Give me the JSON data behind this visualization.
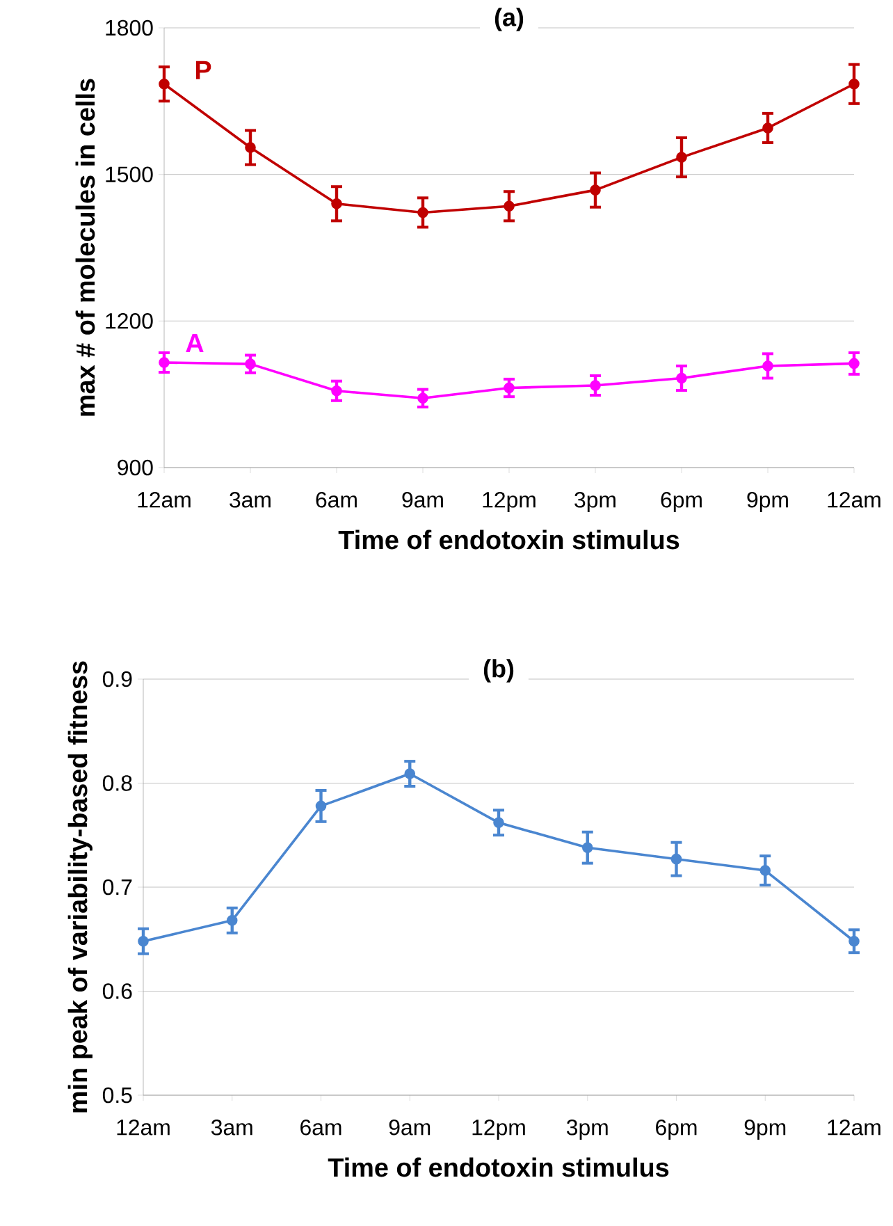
{
  "chart_data": [
    {
      "type": "line",
      "title": "(a)",
      "xlabel": "Time of endotoxin stimulus",
      "ylabel": "max # of molecules in cells",
      "categories": [
        "12am",
        "3am",
        "6am",
        "9am",
        "12pm",
        "3pm",
        "6pm",
        "9pm",
        "12am"
      ],
      "ylim": [
        900,
        1800
      ],
      "yticks": [
        900,
        1200,
        1500,
        1800
      ],
      "grid": "y",
      "marker": "circle",
      "legend": false,
      "series": [
        {
          "name": "P",
          "color": "#c00000",
          "values": [
            1685,
            1555,
            1440,
            1422,
            1435,
            1468,
            1535,
            1595,
            1685
          ],
          "errors": [
            35,
            35,
            35,
            30,
            30,
            35,
            40,
            30,
            40
          ]
        },
        {
          "name": "A",
          "color": "#ff00ff",
          "values": [
            1115,
            1112,
            1057,
            1042,
            1063,
            1068,
            1083,
            1108,
            1113
          ],
          "errors": [
            20,
            18,
            20,
            18,
            18,
            20,
            25,
            25,
            22
          ]
        }
      ]
    },
    {
      "type": "line",
      "title": "(b)",
      "xlabel": "Time of endotoxin stimulus",
      "ylabel": "min peak of variability-based fitness",
      "categories": [
        "12am",
        "3am",
        "6am",
        "9am",
        "12pm",
        "3pm",
        "6pm",
        "9pm",
        "12am"
      ],
      "ylim": [
        0.5,
        0.9
      ],
      "yticks": [
        0.5,
        0.6,
        0.7,
        0.8,
        0.9
      ],
      "grid": "y",
      "marker": "circle",
      "legend": false,
      "series": [
        {
          "color": "#4a86d0",
          "values": [
            0.648,
            0.668,
            0.778,
            0.809,
            0.762,
            0.738,
            0.727,
            0.716,
            0.648
          ],
          "errors": [
            0.012,
            0.012,
            0.015,
            0.012,
            0.012,
            0.015,
            0.016,
            0.014,
            0.011
          ]
        }
      ]
    }
  ]
}
